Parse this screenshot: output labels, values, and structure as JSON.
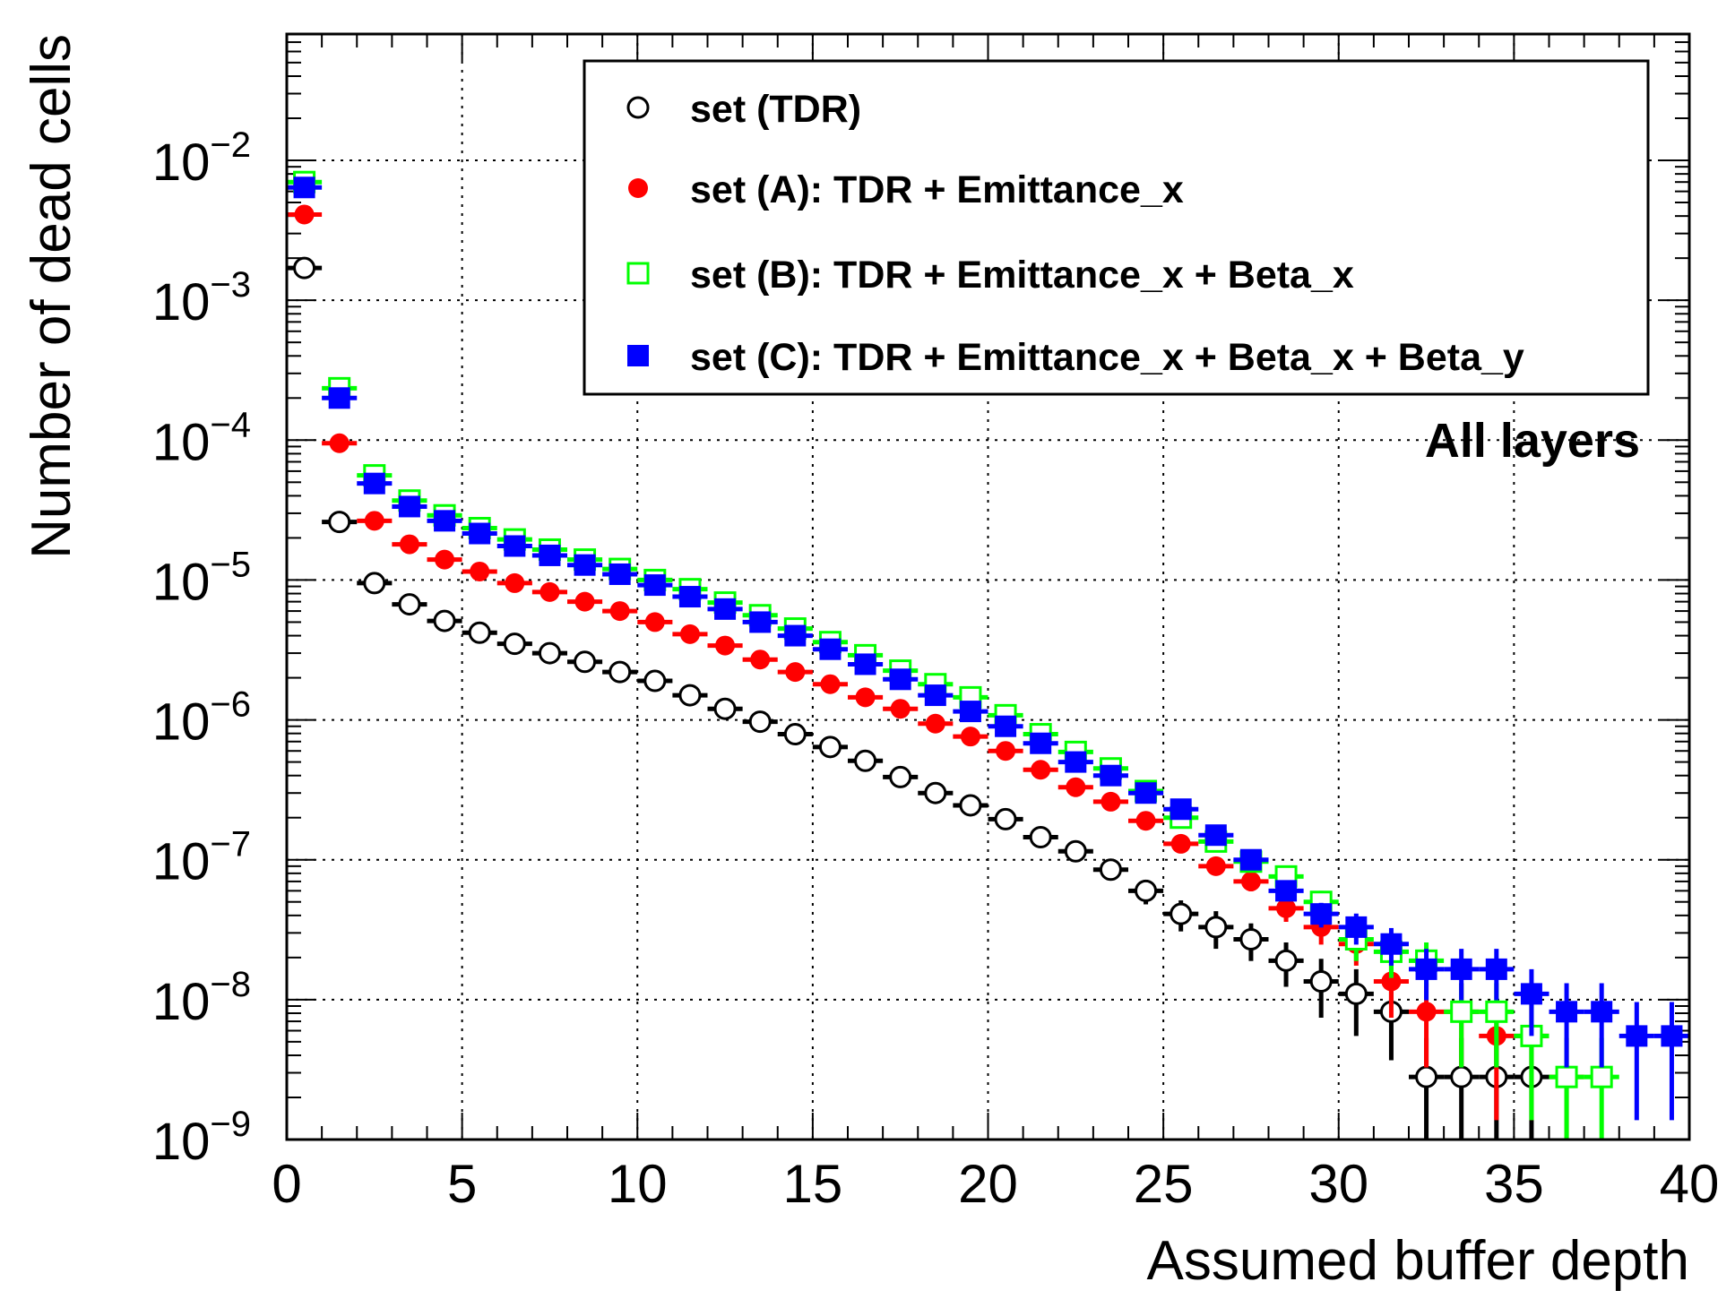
{
  "chart_data": {
    "type": "scatter",
    "title": "",
    "xlabel": "Assumed buffer depth",
    "ylabel": "Number of dead cells",
    "xlim": [
      0,
      40
    ],
    "ylim": [
      1e-09,
      0.08
    ],
    "y_scale": "log",
    "grid": true,
    "legend_position": "top-right",
    "annotation": "All layers",
    "x_ticks": [
      "0",
      "5",
      "10",
      "15",
      "20",
      "25",
      "30",
      "35",
      "40"
    ],
    "y_ticks": [
      {
        "base": "10",
        "exp": "−9"
      },
      {
        "base": "10",
        "exp": "−8"
      },
      {
        "base": "10",
        "exp": "−7"
      },
      {
        "base": "10",
        "exp": "−6"
      },
      {
        "base": "10",
        "exp": "−5"
      },
      {
        "base": "10",
        "exp": "−4"
      },
      {
        "base": "10",
        "exp": "−3"
      },
      {
        "base": "10",
        "exp": "−2"
      }
    ],
    "series": [
      {
        "name": "set (TDR)",
        "color": "#000000",
        "marker": "open-circle",
        "points": [
          [
            0.5,
            0.0017,
            0
          ],
          [
            1.5,
            2.6e-05,
            0
          ],
          [
            2.5,
            9.5e-06,
            0
          ],
          [
            3.5,
            6.7e-06,
            0
          ],
          [
            4.5,
            5.1e-06,
            0
          ],
          [
            5.5,
            4.2e-06,
            0
          ],
          [
            6.5,
            3.5e-06,
            0
          ],
          [
            7.5,
            3e-06,
            0
          ],
          [
            8.5,
            2.6e-06,
            0
          ],
          [
            9.5,
            2.2e-06,
            0
          ],
          [
            10.5,
            1.9e-06,
            0
          ],
          [
            11.5,
            1.5e-06,
            0
          ],
          [
            12.5,
            1.2e-06,
            0
          ],
          [
            13.5,
            9.7e-07,
            0
          ],
          [
            14.5,
            7.9e-07,
            0
          ],
          [
            15.5,
            6.4e-07,
            0
          ],
          [
            16.5,
            5.1e-07,
            0
          ],
          [
            17.5,
            3.9e-07,
            0
          ],
          [
            18.5,
            3e-07,
            0
          ],
          [
            19.5,
            2.45e-07,
            0
          ],
          [
            20.5,
            1.95e-07,
            0
          ],
          [
            21.5,
            1.45e-07,
            0
          ],
          [
            22.5,
            1.15e-07,
            0
          ],
          [
            23.5,
            8.5e-08,
            0.15
          ],
          [
            24.5,
            6e-08,
            0.2
          ],
          [
            25.5,
            4.1e-08,
            0.25
          ],
          [
            26.5,
            3.3e-08,
            0.3
          ],
          [
            27.5,
            2.7e-08,
            0.3
          ],
          [
            28.5,
            1.9e-08,
            0.35
          ],
          [
            29.5,
            1.35e-08,
            0.45
          ],
          [
            30.5,
            1.1e-08,
            0.5
          ],
          [
            31.5,
            8.2e-09,
            0.55
          ],
          [
            32.5,
            2.8e-09,
            0.9
          ],
          [
            33.5,
            2.8e-09,
            0.9
          ],
          [
            34.5,
            2.8e-09,
            0.9
          ],
          [
            35.5,
            2.8e-09,
            0.9
          ]
        ]
      },
      {
        "name": "set (A): TDR + Emittance_x",
        "color": "#ff0000",
        "marker": "filled-circle",
        "points": [
          [
            0.5,
            0.0041,
            0
          ],
          [
            1.5,
            9.5e-05,
            0
          ],
          [
            2.5,
            2.65e-05,
            0
          ],
          [
            3.5,
            1.8e-05,
            0
          ],
          [
            4.5,
            1.4e-05,
            0
          ],
          [
            5.5,
            1.15e-05,
            0
          ],
          [
            6.5,
            9.5e-06,
            0
          ],
          [
            7.5,
            8.2e-06,
            0
          ],
          [
            8.5,
            7e-06,
            0
          ],
          [
            9.5,
            6e-06,
            0
          ],
          [
            10.5,
            5e-06,
            0
          ],
          [
            11.5,
            4.1e-06,
            0
          ],
          [
            12.5,
            3.4e-06,
            0
          ],
          [
            13.5,
            2.7e-06,
            0
          ],
          [
            14.5,
            2.2e-06,
            0
          ],
          [
            15.5,
            1.8e-06,
            0
          ],
          [
            16.5,
            1.45e-06,
            0
          ],
          [
            17.5,
            1.2e-06,
            0
          ],
          [
            18.5,
            9.4e-07,
            0
          ],
          [
            19.5,
            7.6e-07,
            0
          ],
          [
            20.5,
            6e-07,
            0
          ],
          [
            21.5,
            4.4e-07,
            0
          ],
          [
            22.5,
            3.3e-07,
            0
          ],
          [
            23.5,
            2.6e-07,
            0
          ],
          [
            24.5,
            1.9e-07,
            0
          ],
          [
            25.5,
            1.3e-07,
            0
          ],
          [
            26.5,
            9e-08,
            0.12
          ],
          [
            27.5,
            7e-08,
            0.15
          ],
          [
            28.5,
            4.5e-08,
            0.2
          ],
          [
            29.5,
            3.3e-08,
            0.25
          ],
          [
            30.5,
            2.5e-08,
            0.3
          ],
          [
            31.5,
            1.35e-08,
            0.45
          ],
          [
            32.5,
            8.2e-09,
            0.6
          ],
          [
            33.5,
            8.2e-09,
            0.6
          ],
          [
            34.5,
            5.5e-09,
            0.75
          ],
          [
            35.5,
            5.5e-09,
            0.75
          ],
          [
            36.5,
            2.8e-09,
            0.9
          ]
        ]
      },
      {
        "name": "set (B): TDR + Emittance_x + Beta_x",
        "color": "#00ff00",
        "marker": "open-square",
        "points": [
          [
            0.5,
            0.007,
            0
          ],
          [
            1.5,
            0.000235,
            0
          ],
          [
            2.5,
            5.6e-05,
            0
          ],
          [
            3.5,
            3.7e-05,
            0
          ],
          [
            4.5,
            2.9e-05,
            0
          ],
          [
            5.5,
            2.35e-05,
            0
          ],
          [
            6.5,
            1.95e-05,
            0
          ],
          [
            7.5,
            1.65e-05,
            0
          ],
          [
            8.5,
            1.4e-05,
            0
          ],
          [
            9.5,
            1.2e-05,
            0
          ],
          [
            10.5,
            1e-05,
            0
          ],
          [
            11.5,
            8.6e-06,
            0
          ],
          [
            12.5,
            6.9e-06,
            0
          ],
          [
            13.5,
            5.6e-06,
            0
          ],
          [
            14.5,
            4.5e-06,
            0
          ],
          [
            15.5,
            3.6e-06,
            0
          ],
          [
            16.5,
            2.9e-06,
            0
          ],
          [
            17.5,
            2.25e-06,
            0
          ],
          [
            18.5,
            1.8e-06,
            0
          ],
          [
            19.5,
            1.45e-06,
            0
          ],
          [
            20.5,
            1.08e-06,
            0
          ],
          [
            21.5,
            7.9e-07,
            0
          ],
          [
            22.5,
            5.9e-07,
            0
          ],
          [
            23.5,
            4.5e-07,
            0
          ],
          [
            24.5,
            3.1e-07,
            0
          ],
          [
            25.5,
            2e-07,
            0
          ],
          [
            26.5,
            1.35e-07,
            0
          ],
          [
            27.5,
            9.7e-08,
            0
          ],
          [
            28.5,
            7.6e-08,
            0.15
          ],
          [
            29.5,
            5e-08,
            0.2
          ],
          [
            30.5,
            2.7e-08,
            0.3
          ],
          [
            31.5,
            2.2e-08,
            0.35
          ],
          [
            32.5,
            1.9e-08,
            0.35
          ],
          [
            33.5,
            8.2e-09,
            0.6
          ],
          [
            34.5,
            8.2e-09,
            0.6
          ],
          [
            35.5,
            5.5e-09,
            0.75
          ],
          [
            36.5,
            2.8e-09,
            0.9
          ],
          [
            37.5,
            2.8e-09,
            0.9
          ]
        ]
      },
      {
        "name": "set (C): TDR + Emittance_x + Beta_x + Beta_y",
        "color": "#0000ff",
        "marker": "filled-square",
        "points": [
          [
            0.5,
            0.0064,
            0
          ],
          [
            1.5,
            0.0002,
            0
          ],
          [
            2.5,
            4.9e-05,
            0
          ],
          [
            3.5,
            3.35e-05,
            0
          ],
          [
            4.5,
            2.65e-05,
            0
          ],
          [
            5.5,
            2.15e-05,
            0
          ],
          [
            6.5,
            1.75e-05,
            0
          ],
          [
            7.5,
            1.5e-05,
            0
          ],
          [
            8.5,
            1.28e-05,
            0
          ],
          [
            9.5,
            1.1e-05,
            0
          ],
          [
            10.5,
            9.2e-06,
            0
          ],
          [
            11.5,
            7.6e-06,
            0
          ],
          [
            12.5,
            6.2e-06,
            0
          ],
          [
            13.5,
            5e-06,
            0
          ],
          [
            14.5,
            4e-06,
            0
          ],
          [
            15.5,
            3.2e-06,
            0
          ],
          [
            16.5,
            2.5e-06,
            0
          ],
          [
            17.5,
            1.95e-06,
            0
          ],
          [
            18.5,
            1.5e-06,
            0
          ],
          [
            19.5,
            1.15e-06,
            0
          ],
          [
            20.5,
            9e-07,
            0
          ],
          [
            21.5,
            6.8e-07,
            0
          ],
          [
            22.5,
            5e-07,
            0
          ],
          [
            23.5,
            4e-07,
            0
          ],
          [
            24.5,
            3e-07,
            0
          ],
          [
            25.5,
            2.3e-07,
            0
          ],
          [
            26.5,
            1.5e-07,
            0
          ],
          [
            27.5,
            1e-07,
            0
          ],
          [
            28.5,
            6e-08,
            0.15
          ],
          [
            29.5,
            4.1e-08,
            0.2
          ],
          [
            30.5,
            3.3e-08,
            0.25
          ],
          [
            31.5,
            2.5e-08,
            0.3
          ],
          [
            32.5,
            1.65e-08,
            0.4
          ],
          [
            33.5,
            1.65e-08,
            0.4
          ],
          [
            34.5,
            1.65e-08,
            0.4
          ],
          [
            35.5,
            1.1e-08,
            0.5
          ],
          [
            36.5,
            8.2e-09,
            0.6
          ],
          [
            37.5,
            8.2e-09,
            0.6
          ],
          [
            38.5,
            5.5e-09,
            0.75
          ],
          [
            39.5,
            5.5e-09,
            0.75
          ]
        ]
      }
    ]
  }
}
